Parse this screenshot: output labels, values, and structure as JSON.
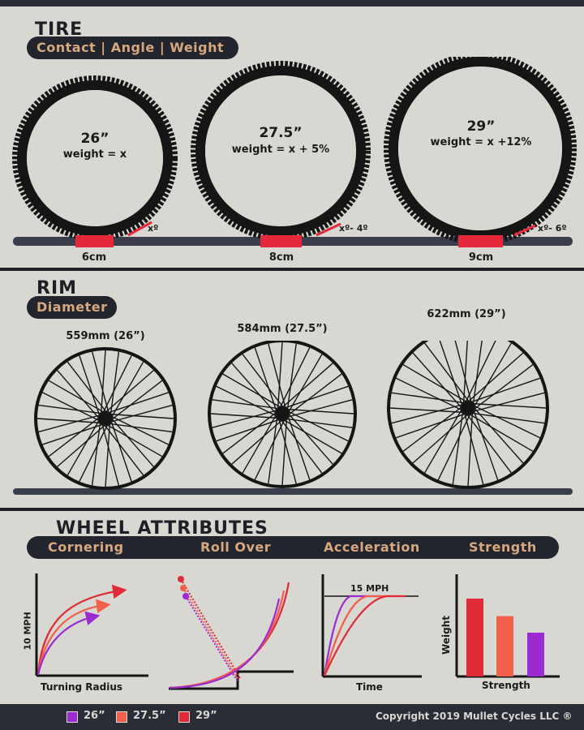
{
  "tire": {
    "title": "TIRE",
    "subtitle": "Contact | Angle | Weight",
    "items": [
      {
        "size": "26”",
        "weight": "weight = x",
        "contact": "6cm",
        "angle": "xº"
      },
      {
        "size": "27.5”",
        "weight": "weight = x + 5%",
        "contact": "8cm",
        "angle": "xº- 4º"
      },
      {
        "size": "29”",
        "weight": "weight = x +12%",
        "contact": "9cm",
        "angle": "xº- 6º"
      }
    ]
  },
  "rim": {
    "title": "RIM",
    "subtitle": "Diameter",
    "items": [
      {
        "label": "559mm (26”)"
      },
      {
        "label": "584mm (27.5”)"
      },
      {
        "label": "622mm (29”)"
      }
    ]
  },
  "attributes": {
    "title": "WHEEL ATTRIBUTES",
    "labels": [
      "Cornering",
      "Roll Over",
      "Acceleration",
      "Strength"
    ],
    "cornering": {
      "xlabel": "Turning Radius",
      "ylabel": "10 MPH"
    },
    "acceleration": {
      "xlabel": "Time",
      "annotation": "15 MPH"
    },
    "strength": {
      "xlabel": "Strength",
      "ylabel": "Weight",
      "values": [
        0.8,
        0.62,
        0.45
      ]
    }
  },
  "colors": {
    "c26": "#9b2ad1",
    "c275": "#f2604c",
    "c29": "#df2b38"
  },
  "legend": [
    {
      "label": "26”",
      "color": "#9b2ad1"
    },
    {
      "label": "27.5”",
      "color": "#f2604c"
    },
    {
      "label": "29”",
      "color": "#df2b38"
    }
  ],
  "copyright": "Copyright 2019 Mullet Cycles LLC ®"
}
